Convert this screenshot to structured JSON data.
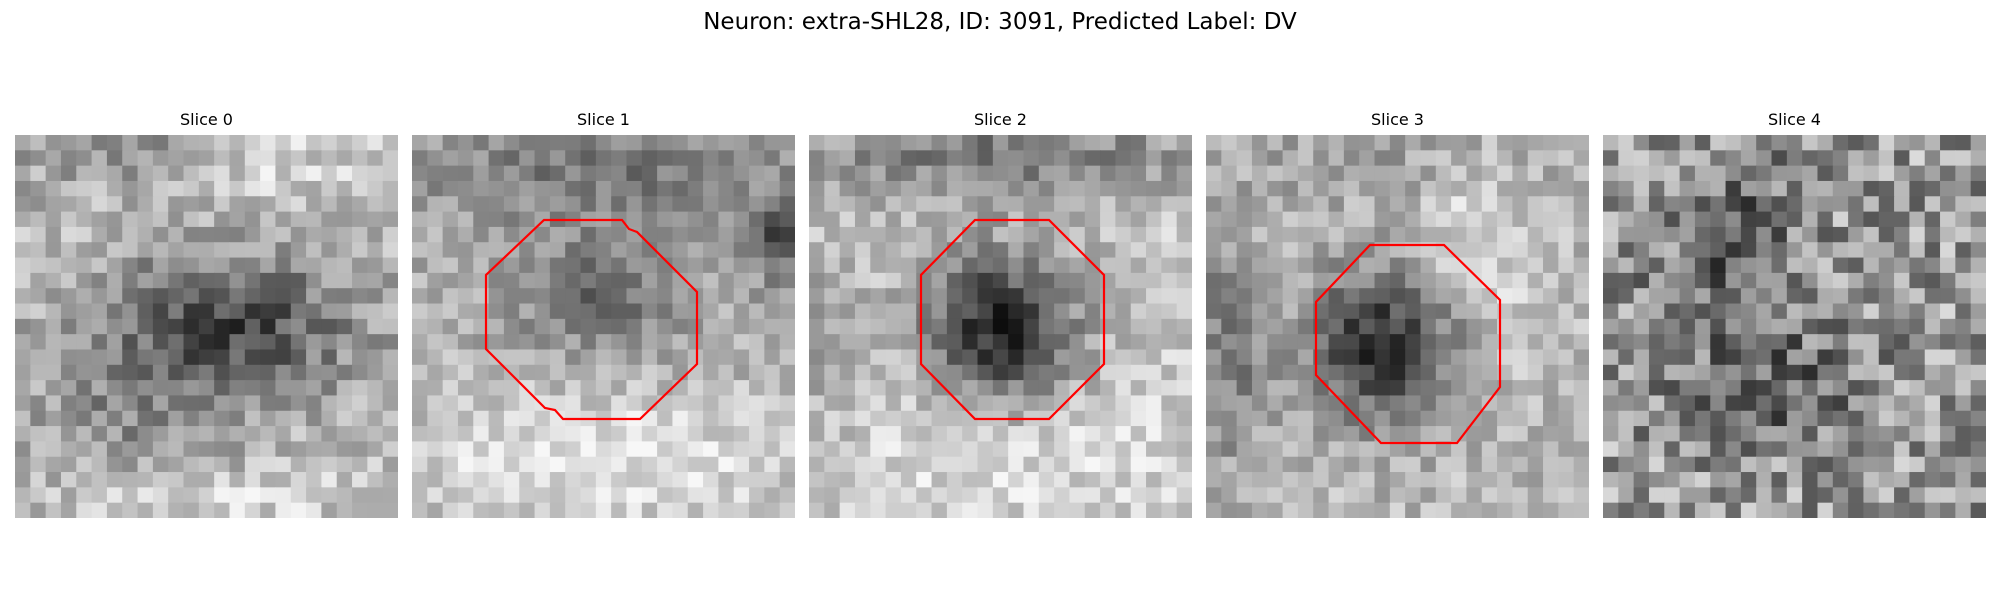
{
  "figure": {
    "title": "Neuron: extra-SHL28, ID: 3091, Predicted Label: DV"
  },
  "panels": [
    {
      "title": "Slice 0",
      "has_roi": false
    },
    {
      "title": "Slice 1",
      "has_roi": true
    },
    {
      "title": "Slice 2",
      "has_roi": true
    },
    {
      "title": "Slice 3",
      "has_roi": true
    },
    {
      "title": "Slice 4",
      "has_roi": false
    }
  ],
  "colors": {
    "roi_outline": "#ff0000",
    "background": "#ffffff"
  },
  "image": {
    "colormap": "grayscale",
    "grid": "25x25 pixel blocks"
  }
}
